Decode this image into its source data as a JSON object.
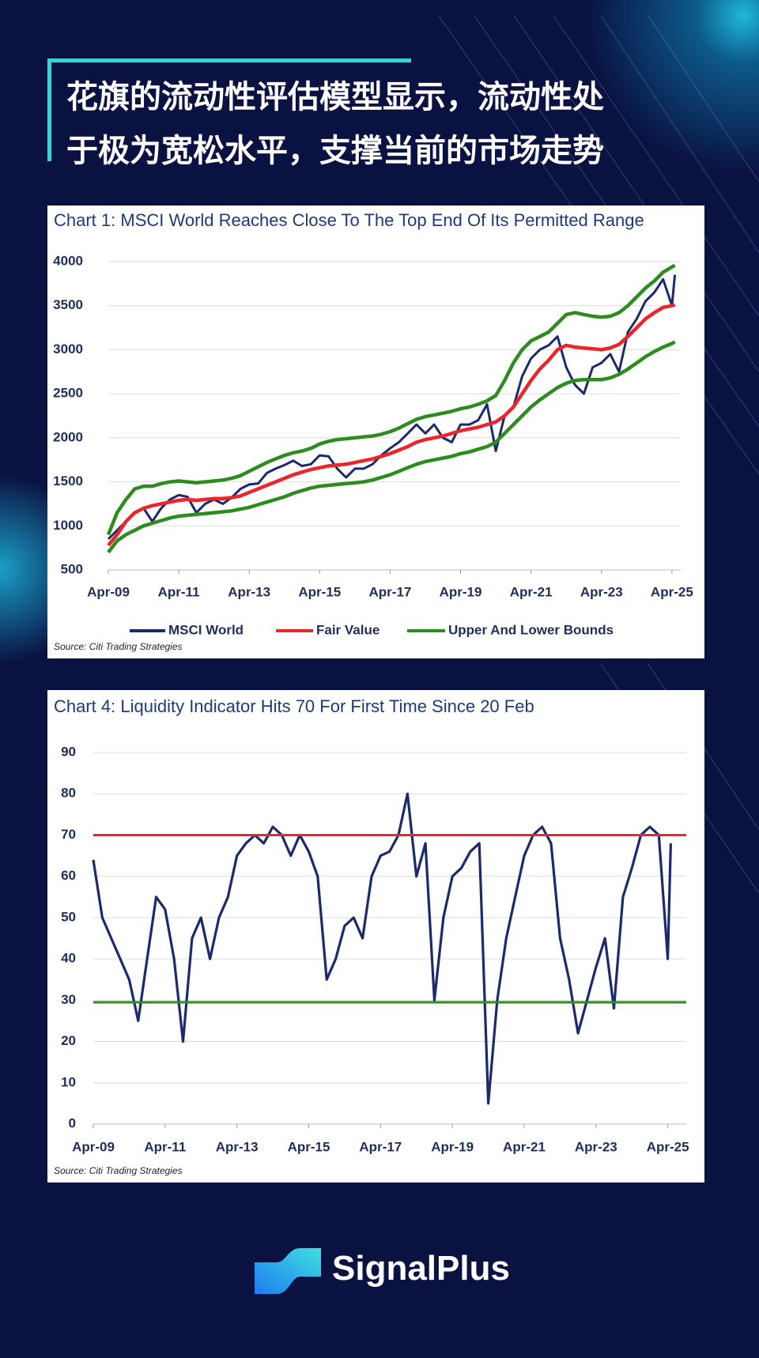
{
  "header": {
    "title_lines": [
      "花旗的流动性评估模型显示，流动性处",
      "于极为宽松水平，支撑当前的市场走势"
    ]
  },
  "brand": "SignalPlus",
  "chart_data": [
    {
      "type": "line",
      "title": "Chart 1: MSCI World Reaches Close To The Top End Of Its Permitted Range",
      "source": "Source: Citi Trading Strategies",
      "x": [
        "2009-04",
        "2009-07",
        "2009-10",
        "2010-01",
        "2010-04",
        "2010-07",
        "2010-10",
        "2011-01",
        "2011-04",
        "2011-07",
        "2011-10",
        "2012-01",
        "2012-04",
        "2012-07",
        "2012-10",
        "2013-01",
        "2013-04",
        "2013-07",
        "2013-10",
        "2014-01",
        "2014-04",
        "2014-07",
        "2014-10",
        "2015-01",
        "2015-04",
        "2015-07",
        "2015-10",
        "2016-01",
        "2016-04",
        "2016-07",
        "2016-10",
        "2017-01",
        "2017-04",
        "2017-07",
        "2017-10",
        "2018-01",
        "2018-04",
        "2018-07",
        "2018-10",
        "2019-01",
        "2019-04",
        "2019-07",
        "2019-10",
        "2020-01",
        "2020-04",
        "2020-07",
        "2020-10",
        "2021-01",
        "2021-04",
        "2021-07",
        "2021-10",
        "2022-01",
        "2022-04",
        "2022-07",
        "2022-10",
        "2023-01",
        "2023-04",
        "2023-07",
        "2023-10",
        "2024-01",
        "2024-04",
        "2024-07",
        "2024-10",
        "2025-01",
        "2025-04",
        "2025-05"
      ],
      "series": [
        {
          "name": "MSCI World",
          "color": "#1b2a6b",
          "values": [
            850,
            950,
            1050,
            1150,
            1200,
            1050,
            1200,
            1300,
            1350,
            1330,
            1150,
            1250,
            1300,
            1250,
            1320,
            1420,
            1470,
            1480,
            1600,
            1650,
            1690,
            1740,
            1680,
            1700,
            1800,
            1790,
            1650,
            1550,
            1650,
            1650,
            1700,
            1800,
            1880,
            1950,
            2050,
            2150,
            2050,
            2150,
            2000,
            1950,
            2150,
            2150,
            2200,
            2380,
            1850,
            2250,
            2350,
            2700,
            2900,
            3000,
            3050,
            3150,
            2800,
            2600,
            2500,
            2800,
            2850,
            2950,
            2750,
            3200,
            3350,
            3550,
            3650,
            3800,
            3500,
            3850
          ]
        },
        {
          "name": "Fair Value",
          "color": "#e8262b",
          "values": [
            780,
            900,
            1050,
            1150,
            1200,
            1230,
            1250,
            1270,
            1290,
            1300,
            1290,
            1300,
            1310,
            1310,
            1320,
            1340,
            1380,
            1420,
            1460,
            1500,
            1540,
            1580,
            1610,
            1640,
            1660,
            1680,
            1690,
            1700,
            1720,
            1740,
            1760,
            1790,
            1820,
            1860,
            1900,
            1950,
            1980,
            2000,
            2020,
            2050,
            2080,
            2100,
            2120,
            2150,
            2180,
            2250,
            2350,
            2500,
            2650,
            2780,
            2880,
            3000,
            3050,
            3030,
            3020,
            3010,
            3000,
            3020,
            3060,
            3150,
            3250,
            3350,
            3420,
            3480,
            3500,
            3510
          ]
        },
        {
          "name": "Upper And Lower Bounds",
          "color": "#2e8b1f",
          "upper": [
            900,
            1150,
            1300,
            1420,
            1450,
            1450,
            1480,
            1500,
            1510,
            1500,
            1490,
            1500,
            1510,
            1520,
            1540,
            1570,
            1620,
            1670,
            1720,
            1760,
            1800,
            1830,
            1850,
            1880,
            1930,
            1960,
            1980,
            1990,
            2000,
            2010,
            2020,
            2040,
            2070,
            2110,
            2160,
            2210,
            2240,
            2260,
            2280,
            2300,
            2330,
            2350,
            2380,
            2420,
            2480,
            2650,
            2850,
            3000,
            3100,
            3150,
            3200,
            3300,
            3400,
            3420,
            3400,
            3380,
            3370,
            3380,
            3420,
            3500,
            3600,
            3700,
            3780,
            3880,
            3940,
            3960
          ],
          "lower": [
            700,
            830,
            900,
            950,
            1000,
            1030,
            1060,
            1090,
            1110,
            1120,
            1130,
            1140,
            1150,
            1160,
            1170,
            1190,
            1210,
            1240,
            1270,
            1300,
            1330,
            1370,
            1400,
            1430,
            1450,
            1460,
            1470,
            1480,
            1490,
            1500,
            1520,
            1550,
            1580,
            1620,
            1660,
            1700,
            1730,
            1750,
            1770,
            1790,
            1820,
            1840,
            1870,
            1900,
            1950,
            2050,
            2150,
            2250,
            2350,
            2430,
            2500,
            2570,
            2620,
            2650,
            2660,
            2660,
            2660,
            2680,
            2720,
            2780,
            2850,
            2920,
            2980,
            3030,
            3070,
            3090
          ]
        }
      ],
      "xlim": [
        "2009-04",
        "2025-07"
      ],
      "xticks": [
        {
          "value": "2009-04",
          "label": "Apr-09"
        },
        {
          "value": "2011-04",
          "label": "Apr-11"
        },
        {
          "value": "2013-04",
          "label": "Apr-13"
        },
        {
          "value": "2015-04",
          "label": "Apr-15"
        },
        {
          "value": "2017-04",
          "label": "Apr-17"
        },
        {
          "value": "2019-04",
          "label": "Apr-19"
        },
        {
          "value": "2021-04",
          "label": "Apr-21"
        },
        {
          "value": "2023-04",
          "label": "Apr-23"
        },
        {
          "value": "2025-04",
          "label": "Apr-25"
        }
      ],
      "ylim": [
        500,
        4000
      ],
      "yticks": [
        500,
        1000,
        1500,
        2000,
        2500,
        3000,
        3500,
        4000
      ],
      "grid": true
    },
    {
      "type": "line",
      "title": "Chart 4: Liquidity Indicator Hits 70 For First Time Since 20 Feb",
      "source": "Source: Citi Trading Strategies",
      "x": [
        "2009-04",
        "2009-07",
        "2009-10",
        "2010-01",
        "2010-04",
        "2010-07",
        "2010-10",
        "2011-01",
        "2011-04",
        "2011-07",
        "2011-10",
        "2012-01",
        "2012-04",
        "2012-07",
        "2012-10",
        "2013-01",
        "2013-04",
        "2013-07",
        "2013-10",
        "2014-01",
        "2014-04",
        "2014-07",
        "2014-10",
        "2015-01",
        "2015-04",
        "2015-07",
        "2015-10",
        "2016-01",
        "2016-04",
        "2016-07",
        "2016-10",
        "2017-01",
        "2017-04",
        "2017-07",
        "2017-10",
        "2018-01",
        "2018-04",
        "2018-07",
        "2018-10",
        "2019-01",
        "2019-04",
        "2019-07",
        "2019-10",
        "2020-01",
        "2020-04",
        "2020-07",
        "2020-10",
        "2021-01",
        "2021-04",
        "2021-07",
        "2021-10",
        "2022-01",
        "2022-04",
        "2022-07",
        "2022-10",
        "2023-01",
        "2023-04",
        "2023-07",
        "2023-10",
        "2024-01",
        "2024-04",
        "2024-07",
        "2024-10",
        "2025-01",
        "2025-04",
        "2025-05"
      ],
      "series": [
        {
          "color": "#1b2a6b",
          "values": [
            64,
            50,
            45,
            40,
            35,
            25,
            40,
            55,
            52,
            40,
            20,
            45,
            50,
            40,
            50,
            55,
            65,
            68,
            70,
            68,
            72,
            70,
            65,
            70,
            66,
            60,
            35,
            40,
            48,
            50,
            45,
            60,
            65,
            66,
            70,
            80,
            60,
            68,
            30,
            50,
            60,
            62,
            66,
            68,
            5,
            30,
            45,
            55,
            65,
            70,
            72,
            68,
            45,
            35,
            22,
            30,
            38,
            45,
            28,
            55,
            62,
            70,
            72,
            70,
            40,
            68
          ]
        }
      ],
      "hlines": [
        {
          "value": 70,
          "color": "#e8262b"
        },
        {
          "value": 29.5,
          "color": "#2e8b1f"
        }
      ],
      "xlim": [
        "2009-04",
        "2025-07"
      ],
      "xticks": [
        {
          "value": "2009-04",
          "label": "Apr-09"
        },
        {
          "value": "2011-04",
          "label": "Apr-11"
        },
        {
          "value": "2013-04",
          "label": "Apr-13"
        },
        {
          "value": "2015-04",
          "label": "Apr-15"
        },
        {
          "value": "2017-04",
          "label": "Apr-17"
        },
        {
          "value": "2019-04",
          "label": "Apr-19"
        },
        {
          "value": "2021-04",
          "label": "Apr-21"
        },
        {
          "value": "2023-04",
          "label": "Apr-23"
        },
        {
          "value": "2025-04",
          "label": "Apr-25"
        }
      ],
      "ylim": [
        0,
        90
      ],
      "yticks": [
        0,
        10,
        20,
        30,
        40,
        50,
        60,
        70,
        80,
        90
      ],
      "grid": true
    }
  ]
}
